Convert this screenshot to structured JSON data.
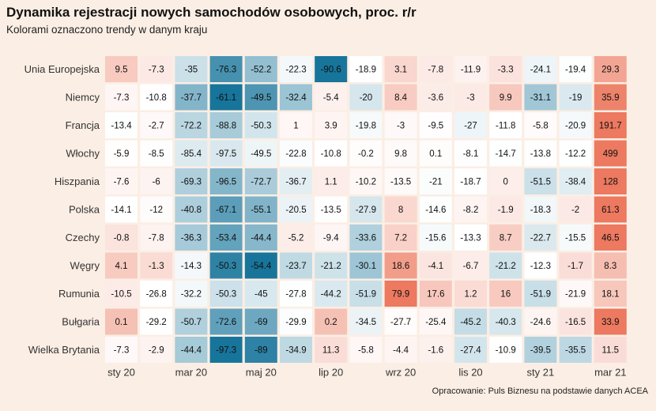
{
  "chart_data": {
    "type": "heatmap",
    "title": "Dynamika rejestracji nowych samochodów osobowych, proc. r/r",
    "subtitle": "Kolorami oznaczono trendy w danym kraju",
    "caption": "Opracowanie: Puls Biznesu na podstawie danych ACEA",
    "rows": [
      "Unia Europejska",
      "Niemcy",
      "Francja",
      "Włochy",
      "Hiszpania",
      "Polska",
      "Czechy",
      "Węgry",
      "Rumunia",
      "Bułgaria",
      "Wielka Brytania"
    ],
    "x_ticks": [
      {
        "col": 0,
        "label": "sty 20"
      },
      {
        "col": 2,
        "label": "mar 20"
      },
      {
        "col": 4,
        "label": "maj 20"
      },
      {
        "col": 6,
        "label": "lip 20"
      },
      {
        "col": 8,
        "label": "wrz 20"
      },
      {
        "col": 10,
        "label": "lis 20"
      },
      {
        "col": 12,
        "label": "sty 21"
      },
      {
        "col": 14,
        "label": "mar 21"
      }
    ],
    "values": [
      [
        9.5,
        -7.3,
        -35,
        -76.3,
        -52.2,
        -22.3,
        -90.6,
        -18.9,
        3.1,
        -7.8,
        -11.9,
        -3.3,
        -24.1,
        -19.4,
        29.3
      ],
      [
        -7.3,
        -10.8,
        -37.7,
        -61.1,
        -49.5,
        -32.4,
        -5.4,
        -20,
        8.4,
        -3.6,
        -3,
        9.9,
        -31.1,
        -19,
        35.9
      ],
      [
        -13.4,
        -2.7,
        -72.2,
        -88.8,
        -50.3,
        1,
        3.9,
        -19.8,
        -3,
        -9.5,
        -27,
        -11.8,
        -5.8,
        -20.9,
        191.7
      ],
      [
        -5.9,
        -8.5,
        -85.4,
        -97.5,
        -49.5,
        -22.8,
        -10.8,
        -0.2,
        9.8,
        0.1,
        -8.1,
        -14.7,
        -13.8,
        -12.2,
        499
      ],
      [
        -7.6,
        -6,
        -69.3,
        -96.5,
        -72.7,
        -36.7,
        1.1,
        -10.2,
        -13.5,
        -21,
        -18.7,
        0,
        -51.5,
        -38.4,
        128
      ],
      [
        -14.1,
        -12,
        -40.8,
        -67.1,
        -55.1,
        -20.5,
        -13.5,
        -27.9,
        8,
        -14.6,
        -8.2,
        -1.9,
        -18.3,
        -2,
        61.3
      ],
      [
        -0.8,
        -7.8,
        -36.3,
        -53.4,
        -44.4,
        -5.2,
        -9.4,
        -33.6,
        7.2,
        -15.6,
        -13.3,
        8.7,
        -22.7,
        -15.5,
        46.5
      ],
      [
        4.1,
        -1.3,
        -14.3,
        -50.3,
        -54.4,
        -23.7,
        -21.2,
        -30.1,
        18.6,
        -4.1,
        -6.7,
        -21.2,
        -12.3,
        -1.7,
        8.3
      ],
      [
        -10.5,
        -26.8,
        -32.2,
        -50.3,
        -45,
        -27.8,
        -44.2,
        -51.9,
        79.9,
        17.6,
        1.2,
        16,
        -51.9,
        -21.9,
        18.1
      ],
      [
        0.1,
        -29.2,
        -50.7,
        -72.6,
        -69,
        -29.9,
        0.2,
        -34.5,
        -27.7,
        -25.4,
        -45.2,
        -40.3,
        -24.6,
        -16.5,
        33.9
      ],
      [
        -7.3,
        -2.9,
        -44.4,
        -97.3,
        -89,
        -34.9,
        11.3,
        -5.8,
        -4.4,
        -1.6,
        -27.4,
        -10.9,
        -39.5,
        -35.5,
        11.5
      ]
    ],
    "colors": {
      "negative": "#0b6e96",
      "neutral": "#ffffff",
      "positive": "#e8593a"
    }
  }
}
